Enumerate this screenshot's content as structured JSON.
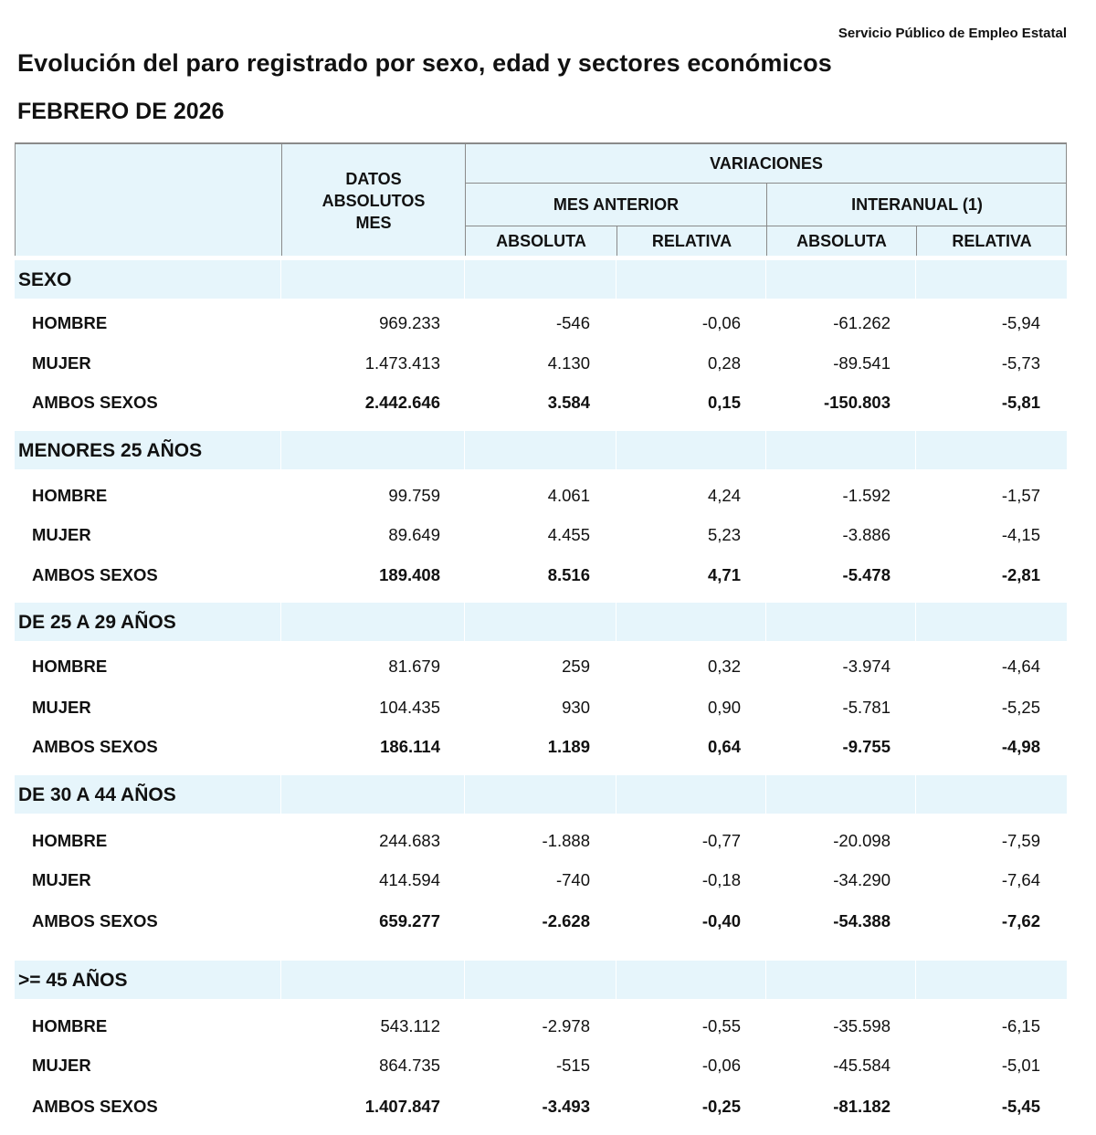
{
  "source": "Servicio Público de Empleo Estatal",
  "title": "Evolución del paro registrado por sexo, edad y sectores económicos",
  "subtitle": "FEBRERO DE 2026",
  "colors": {
    "header_bg": "#e6f5fb",
    "border": "#8a8a8a"
  },
  "header": {
    "datos": "DATOS ABSOLUTOS MES",
    "variaciones": "VARIACIONES",
    "mes_anterior": "MES ANTERIOR",
    "interanual": "INTERANUAL (1)",
    "absoluta_1": "ABSOLUTA",
    "relativa_1": "RELATIVA",
    "absoluta_2": "ABSOLUTA",
    "relativa_2": "RELATIVA"
  },
  "sections": [
    {
      "title": "SEXO",
      "rows": [
        {
          "label": "HOMBRE",
          "datos": "969.233",
          "mes_abs": "-546",
          "mes_rel": "-0,06",
          "int_abs": "-61.262",
          "int_rel": "-5,94"
        },
        {
          "label": "MUJER",
          "datos": "1.473.413",
          "mes_abs": "4.130",
          "mes_rel": "0,28",
          "int_abs": "-89.541",
          "int_rel": "-5,73"
        },
        {
          "label": "AMBOS SEXOS",
          "datos": "2.442.646",
          "mes_abs": "3.584",
          "mes_rel": "0,15",
          "int_abs": "-150.803",
          "int_rel": "-5,81"
        }
      ]
    },
    {
      "title": "MENORES 25 AÑOS",
      "rows": [
        {
          "label": "HOMBRE",
          "datos": "99.759",
          "mes_abs": "4.061",
          "mes_rel": "4,24",
          "int_abs": "-1.592",
          "int_rel": "-1,57"
        },
        {
          "label": "MUJER",
          "datos": "89.649",
          "mes_abs": "4.455",
          "mes_rel": "5,23",
          "int_abs": "-3.886",
          "int_rel": "-4,15"
        },
        {
          "label": "AMBOS SEXOS",
          "datos": "189.408",
          "mes_abs": "8.516",
          "mes_rel": "4,71",
          "int_abs": "-5.478",
          "int_rel": "-2,81"
        }
      ]
    },
    {
      "title": "DE 25 A 29 AÑOS",
      "rows": [
        {
          "label": "HOMBRE",
          "datos": "81.679",
          "mes_abs": "259",
          "mes_rel": "0,32",
          "int_abs": "-3.974",
          "int_rel": "-4,64"
        },
        {
          "label": "MUJER",
          "datos": "104.435",
          "mes_abs": "930",
          "mes_rel": "0,90",
          "int_abs": "-5.781",
          "int_rel": "-5,25"
        },
        {
          "label": "AMBOS SEXOS",
          "datos": "186.114",
          "mes_abs": "1.189",
          "mes_rel": "0,64",
          "int_abs": "-9.755",
          "int_rel": "-4,98"
        }
      ]
    },
    {
      "title": "DE 30 A 44 AÑOS",
      "rows": [
        {
          "label": "HOMBRE",
          "datos": "244.683",
          "mes_abs": "-1.888",
          "mes_rel": "-0,77",
          "int_abs": "-20.098",
          "int_rel": "-7,59"
        },
        {
          "label": "MUJER",
          "datos": "414.594",
          "mes_abs": "-740",
          "mes_rel": "-0,18",
          "int_abs": "-34.290",
          "int_rel": "-7,64"
        },
        {
          "label": "AMBOS SEXOS",
          "datos": "659.277",
          "mes_abs": "-2.628",
          "mes_rel": "-0,40",
          "int_abs": "-54.388",
          "int_rel": "-7,62"
        }
      ]
    },
    {
      "title": ">= 45 AÑOS",
      "rows": [
        {
          "label": "HOMBRE",
          "datos": "543.112",
          "mes_abs": "-2.978",
          "mes_rel": "-0,55",
          "int_abs": "-35.598",
          "int_rel": "-6,15"
        },
        {
          "label": "MUJER",
          "datos": "864.735",
          "mes_abs": "-515",
          "mes_rel": "-0,06",
          "int_abs": "-45.584",
          "int_rel": "-5,01"
        },
        {
          "label": "AMBOS SEXOS",
          "datos": "1.407.847",
          "mes_abs": "-3.493",
          "mes_rel": "-0,25",
          "int_abs": "-81.182",
          "int_rel": "-5,45"
        }
      ]
    }
  ]
}
